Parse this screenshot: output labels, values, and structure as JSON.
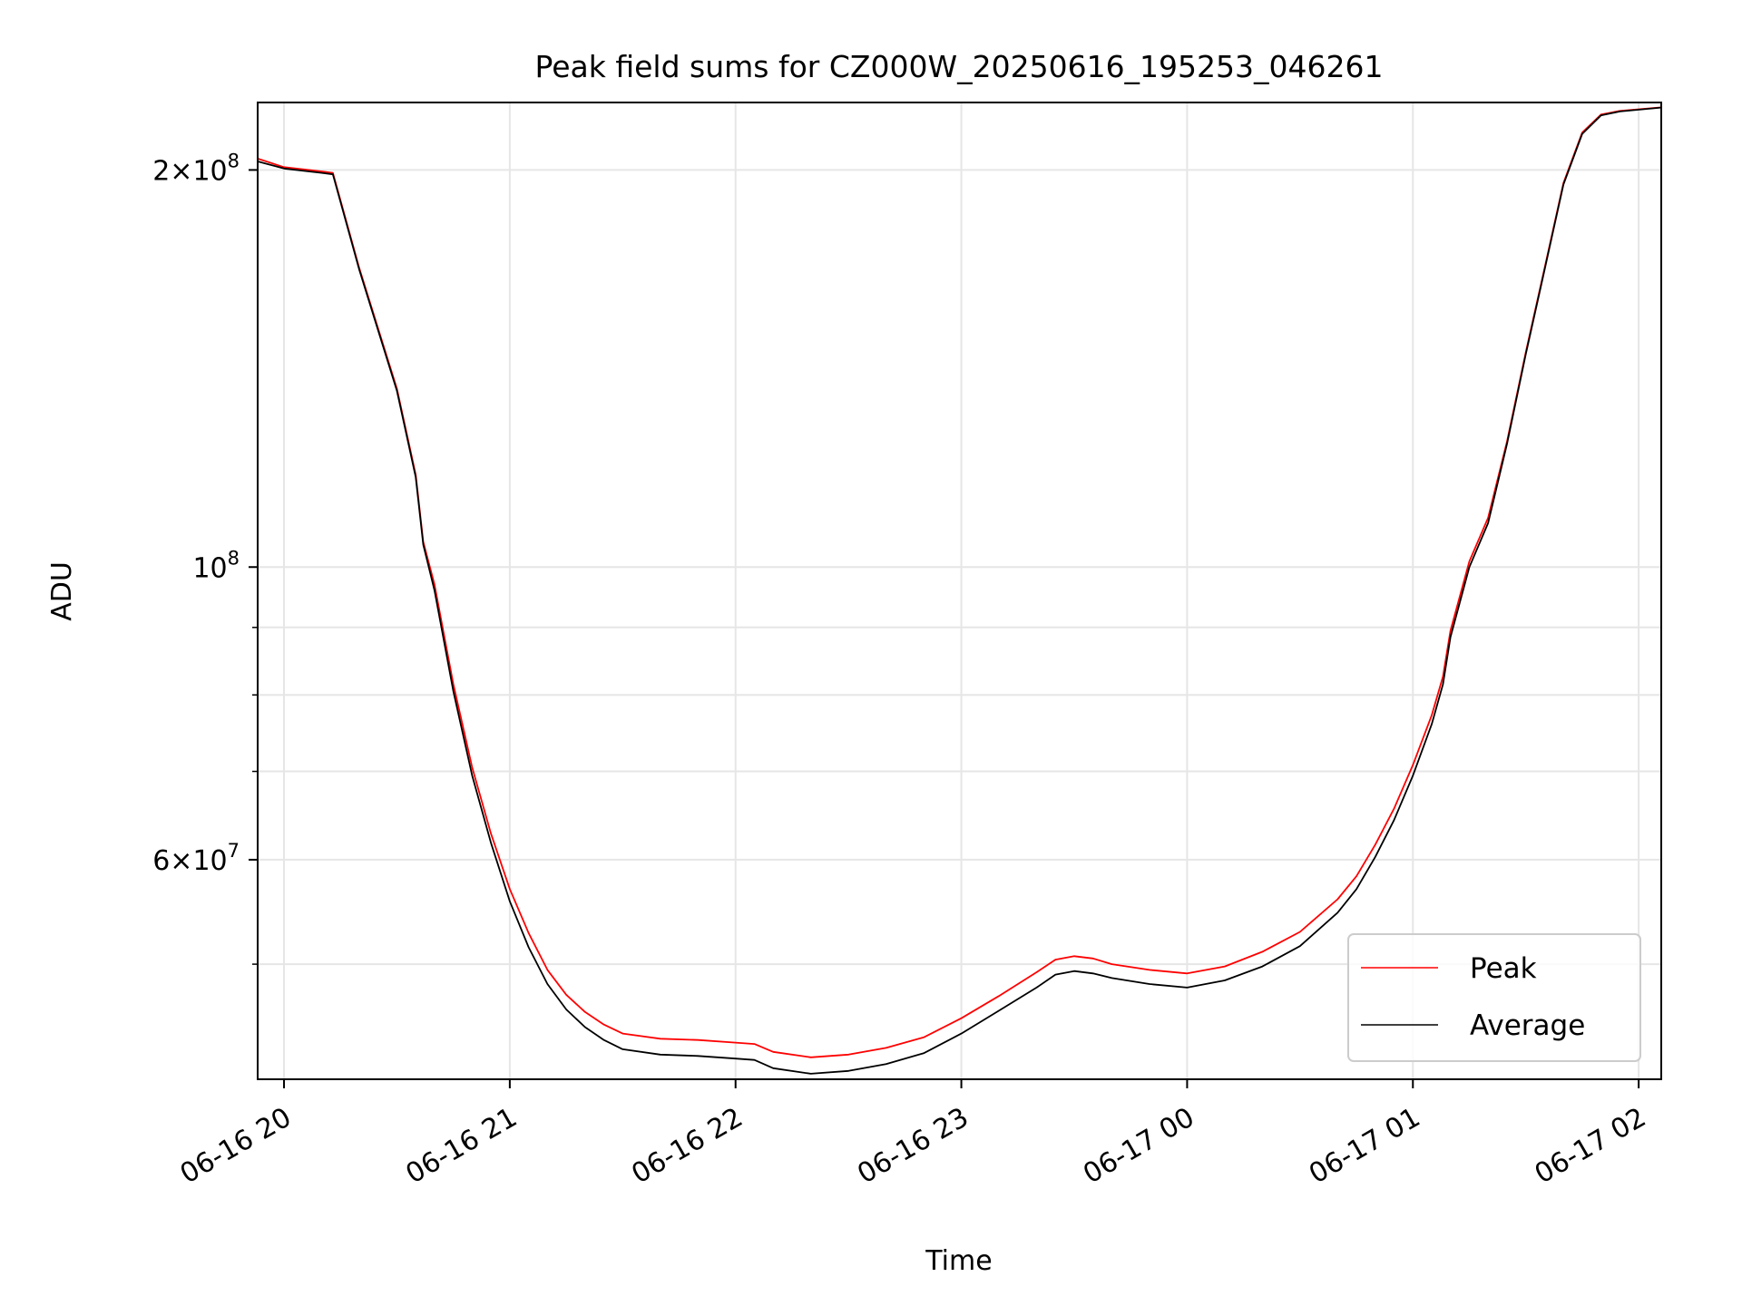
{
  "chart_data": {
    "type": "line",
    "title": "Peak field sums for CZ000W_20250616_195253_046261",
    "xlabel": "Time",
    "ylabel": "ADU",
    "yscale": "log",
    "grid": true,
    "legend_position": "lower-right",
    "xlim": [
      "2025-06-16 19:53",
      "2025-06-17 02:06"
    ],
    "ylim": [
      40900000,
      225000000
    ],
    "x_ticks": [
      {
        "t": "2025-06-16 20:00",
        "label": "06-16 20"
      },
      {
        "t": "2025-06-16 21:00",
        "label": "06-16 21"
      },
      {
        "t": "2025-06-16 22:00",
        "label": "06-16 22"
      },
      {
        "t": "2025-06-16 23:00",
        "label": "06-16 23"
      },
      {
        "t": "2025-06-17 00:00",
        "label": "06-17 00"
      },
      {
        "t": "2025-06-17 01:00",
        "label": "06-17 01"
      },
      {
        "t": "2025-06-17 02:00",
        "label": "06-17 02"
      }
    ],
    "y_major_ticks": [
      {
        "value": 200000000,
        "mantissa": "2",
        "exponent": "8"
      },
      {
        "value": 100000000,
        "mantissa": "",
        "exponent": "8"
      },
      {
        "value": 60000000,
        "mantissa": "6",
        "exponent": "7"
      }
    ],
    "y_minor_ticks": [
      50000000,
      70000000,
      80000000,
      90000000
    ],
    "x": [
      "2025-06-16 19:53",
      "2025-06-16 20:00",
      "2025-06-16 20:10",
      "2025-06-16 20:13",
      "2025-06-16 20:20",
      "2025-06-16 20:30",
      "2025-06-16 20:35",
      "2025-06-16 20:37",
      "2025-06-16 20:40",
      "2025-06-16 20:45",
      "2025-06-16 20:50",
      "2025-06-16 20:55",
      "2025-06-16 21:00",
      "2025-06-16 21:05",
      "2025-06-16 21:10",
      "2025-06-16 21:15",
      "2025-06-16 21:20",
      "2025-06-16 21:25",
      "2025-06-16 21:30",
      "2025-06-16 21:40",
      "2025-06-16 21:50",
      "2025-06-16 22:00",
      "2025-06-16 22:05",
      "2025-06-16 22:10",
      "2025-06-16 22:20",
      "2025-06-16 22:30",
      "2025-06-16 22:40",
      "2025-06-16 22:50",
      "2025-06-16 23:00",
      "2025-06-16 23:10",
      "2025-06-16 23:20",
      "2025-06-16 23:25",
      "2025-06-16 23:30",
      "2025-06-16 23:35",
      "2025-06-16 23:40",
      "2025-06-16 23:50",
      "2025-06-17 00:00",
      "2025-06-17 00:10",
      "2025-06-17 00:20",
      "2025-06-17 00:30",
      "2025-06-17 00:40",
      "2025-06-17 00:45",
      "2025-06-17 00:50",
      "2025-06-17 00:55",
      "2025-06-17 01:00",
      "2025-06-17 01:05",
      "2025-06-17 01:08",
      "2025-06-17 01:10",
      "2025-06-17 01:15",
      "2025-06-17 01:20",
      "2025-06-17 01:25",
      "2025-06-17 01:30",
      "2025-06-17 01:35",
      "2025-06-17 01:40",
      "2025-06-17 01:45",
      "2025-06-17 01:50",
      "2025-06-17 01:55",
      "2025-06-17 02:06"
    ],
    "series": [
      {
        "name": "Average",
        "color": "#000000",
        "values": [
          203000000,
          200500000,
          199000000,
          198500000,
          168000000,
          136000000,
          117000000,
          104000000,
          96000000,
          80500000,
          69500000,
          61800000,
          55800000,
          51500000,
          48300000,
          46200000,
          44800000,
          43800000,
          43100000,
          42700000,
          42600000,
          42400000,
          42300000,
          41700000,
          41300000,
          41500000,
          42000000,
          42800000,
          44300000,
          46100000,
          48000000,
          49100000,
          49400000,
          49200000,
          48800000,
          48300000,
          48000000,
          48600000,
          49800000,
          51600000,
          54700000,
          57000000,
          60300000,
          64300000,
          69500000,
          76000000,
          81500000,
          88500000,
          100000000,
          108000000,
          124000000,
          145000000,
          168000000,
          195000000,
          213000000,
          220000000,
          221500000,
          223000000
        ]
      },
      {
        "name": "Peak",
        "color": "#ff0000",
        "values": [
          204000000,
          201000000,
          199500000,
          199000000,
          168500000,
          136500000,
          117500000,
          104500000,
          97000000,
          81500000,
          70500000,
          62800000,
          57000000,
          52800000,
          49500000,
          47400000,
          46000000,
          45000000,
          44300000,
          43900000,
          43800000,
          43600000,
          43500000,
          42900000,
          42500000,
          42700000,
          43200000,
          44000000,
          45500000,
          47300000,
          49300000,
          50400000,
          50700000,
          50500000,
          50000000,
          49500000,
          49200000,
          49800000,
          51100000,
          52900000,
          56000000,
          58300000,
          61600000,
          65600000,
          70800000,
          77200000,
          82600000,
          89500000,
          101000000,
          109000000,
          124500000,
          145500000,
          168500000,
          195500000,
          213500000,
          220300000,
          221700000,
          223100000
        ]
      }
    ]
  }
}
